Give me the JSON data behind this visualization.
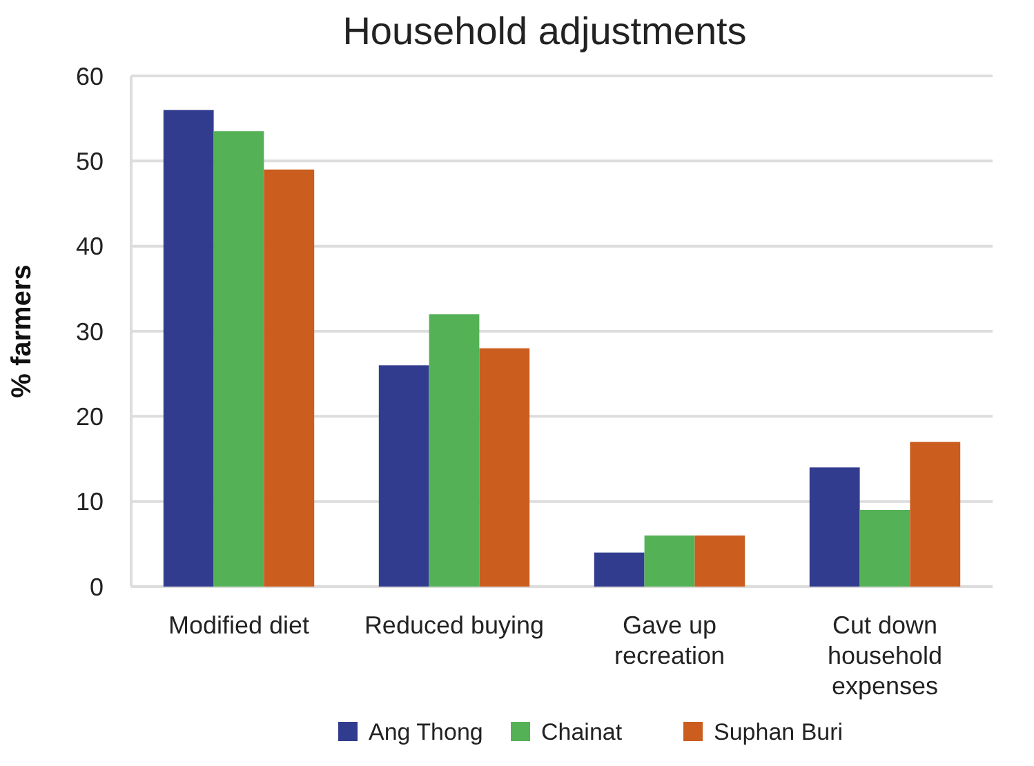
{
  "chart_data": {
    "type": "bar",
    "title": "Household adjustments",
    "ylabel": "% farmers",
    "categories": [
      "Modified diet",
      "Reduced buying",
      "Gave up recreation",
      "Cut down household expenses"
    ],
    "series": [
      {
        "name": "Ang Thong",
        "color": "#323c8f",
        "values": [
          56,
          26,
          4,
          14
        ]
      },
      {
        "name": "Chainat",
        "color": "#55b155",
        "values": [
          53.5,
          32,
          6,
          9
        ]
      },
      {
        "name": "Suphan Buri",
        "color": "#cb5d1e",
        "values": [
          49,
          28,
          6,
          17
        ]
      }
    ],
    "ylim": [
      0,
      60
    ],
    "yticks": [
      0,
      10,
      20,
      30,
      40,
      50,
      60
    ],
    "grid": "y",
    "legend": "bottom"
  }
}
